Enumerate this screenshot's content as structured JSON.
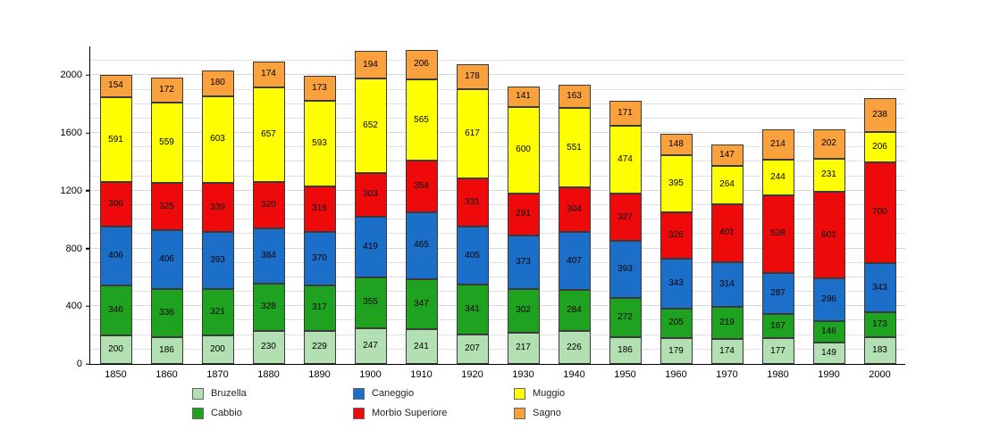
{
  "chart_data": {
    "type": "bar",
    "stacked": true,
    "title": "",
    "xlabel": "",
    "ylabel": "",
    "ylim": [
      0,
      2200
    ],
    "yticks": [
      0,
      400,
      800,
      1200,
      1600,
      2000
    ],
    "grid": {
      "enabled": true,
      "minor_step": 100
    },
    "legend_position": "bottom",
    "categories": [
      "1850",
      "1860",
      "1870",
      "1880",
      "1890",
      "1900",
      "1910",
      "1920",
      "1930",
      "1940",
      "1950",
      "1960",
      "1970",
      "1980",
      "1990",
      "2000"
    ],
    "series": [
      {
        "name": "Bruzella",
        "color": "#b2e0b2",
        "values": [
          200,
          186,
          200,
          230,
          229,
          247,
          241,
          207,
          217,
          226,
          186,
          179,
          174,
          177,
          149,
          183
        ]
      },
      {
        "name": "Cabbio",
        "color": "#1fa21f",
        "values": [
          346,
          336,
          321,
          328,
          317,
          355,
          347,
          341,
          302,
          284,
          272,
          205,
          219,
          167,
          146,
          173
        ]
      },
      {
        "name": "Caneggio",
        "color": "#1b6fc9",
        "values": [
          406,
          406,
          393,
          384,
          370,
          419,
          465,
          405,
          373,
          407,
          393,
          343,
          314,
          287,
          296,
          343
        ]
      },
      {
        "name": "Morbio Superiore",
        "color": "#ee0a0a",
        "values": [
          306,
          325,
          339,
          320,
          316,
          303,
          354,
          331,
          291,
          304,
          327,
          326,
          401,
          538,
          601,
          700
        ]
      },
      {
        "name": "Muggio",
        "color": "#ffff00",
        "values": [
          591,
          559,
          603,
          657,
          593,
          652,
          565,
          617,
          600,
          551,
          474,
          395,
          264,
          244,
          231,
          206
        ]
      },
      {
        "name": "Sagno",
        "color": "#f9a13c",
        "values": [
          154,
          172,
          180,
          174,
          173,
          194,
          206,
          178,
          141,
          163,
          171,
          148,
          147,
          214,
          202,
          238
        ]
      }
    ]
  }
}
